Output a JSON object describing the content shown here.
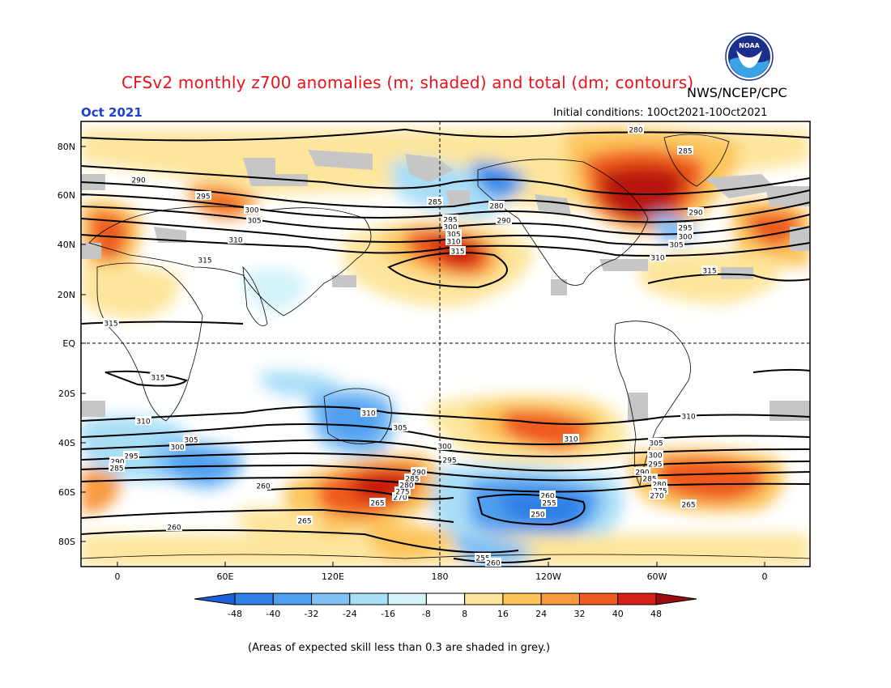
{
  "header": {
    "title": "CFSv2 monthly z700 anomalies (m; shaded) and total (dm; contours)",
    "org": "NWS/NCEP/CPC",
    "month": "Oct 2021",
    "initial_conditions": "Initial conditions: 10Oct2021-10Oct2021"
  },
  "logo": {
    "text": "NOAA"
  },
  "map": {
    "lat_labels": [
      "80N",
      "60N",
      "40N",
      "20N",
      "EQ",
      "20S",
      "40S",
      "60S",
      "80S"
    ],
    "lon_labels": [
      "0",
      "60E",
      "120E",
      "180",
      "120W",
      "60W",
      "0"
    ]
  },
  "colorbar": {
    "ticks": [
      "-48",
      "-40",
      "-32",
      "-24",
      "-16",
      "-8",
      "8",
      "16",
      "24",
      "32",
      "40",
      "48"
    ],
    "colors": [
      "#1c5fd6",
      "#2f7fe6",
      "#4f9ff0",
      "#7fc0f5",
      "#a9def7",
      "#d3f3f8",
      "#ffffff",
      "#fde59b",
      "#fcc55c",
      "#f89a3c",
      "#ef5a1e",
      "#d8201a",
      "#9a0d0d"
    ]
  },
  "contour_labels": [
    {
      "text": "280"
    },
    {
      "text": "285"
    },
    {
      "text": "290"
    },
    {
      "text": "295"
    },
    {
      "text": "300"
    },
    {
      "text": "305"
    },
    {
      "text": "310"
    },
    {
      "text": "315"
    },
    {
      "text": "290"
    },
    {
      "text": "295"
    },
    {
      "text": "300"
    },
    {
      "text": "305"
    },
    {
      "text": "310"
    },
    {
      "text": "315"
    },
    {
      "text": "285"
    },
    {
      "text": "280"
    },
    {
      "text": "290"
    },
    {
      "text": "295"
    },
    {
      "text": "300"
    },
    {
      "text": "305"
    },
    {
      "text": "310"
    },
    {
      "text": "315"
    },
    {
      "text": "290"
    },
    {
      "text": "295"
    },
    {
      "text": "300"
    },
    {
      "text": "305"
    },
    {
      "text": "310"
    },
    {
      "text": "315"
    },
    {
      "text": "315"
    },
    {
      "text": "315"
    },
    {
      "text": "310"
    },
    {
      "text": "310"
    },
    {
      "text": "305"
    },
    {
      "text": "300"
    },
    {
      "text": "305"
    },
    {
      "text": "295"
    },
    {
      "text": "290"
    },
    {
      "text": "285"
    },
    {
      "text": "260"
    },
    {
      "text": "260"
    },
    {
      "text": "265"
    },
    {
      "text": "265"
    },
    {
      "text": "270"
    },
    {
      "text": "275"
    },
    {
      "text": "280"
    },
    {
      "text": "285"
    },
    {
      "text": "290"
    },
    {
      "text": "295"
    },
    {
      "text": "300"
    },
    {
      "text": "310"
    },
    {
      "text": "260"
    },
    {
      "text": "255"
    },
    {
      "text": "250"
    },
    {
      "text": "255"
    },
    {
      "text": "260"
    },
    {
      "text": "305"
    },
    {
      "text": "300"
    },
    {
      "text": "295"
    },
    {
      "text": "290"
    },
    {
      "text": "285"
    },
    {
      "text": "280"
    },
    {
      "text": "275"
    },
    {
      "text": "270"
    },
    {
      "text": "265"
    },
    {
      "text": "310"
    }
  ],
  "footer": "(Areas of expected skill less than 0.3 are shaded in grey.)"
}
